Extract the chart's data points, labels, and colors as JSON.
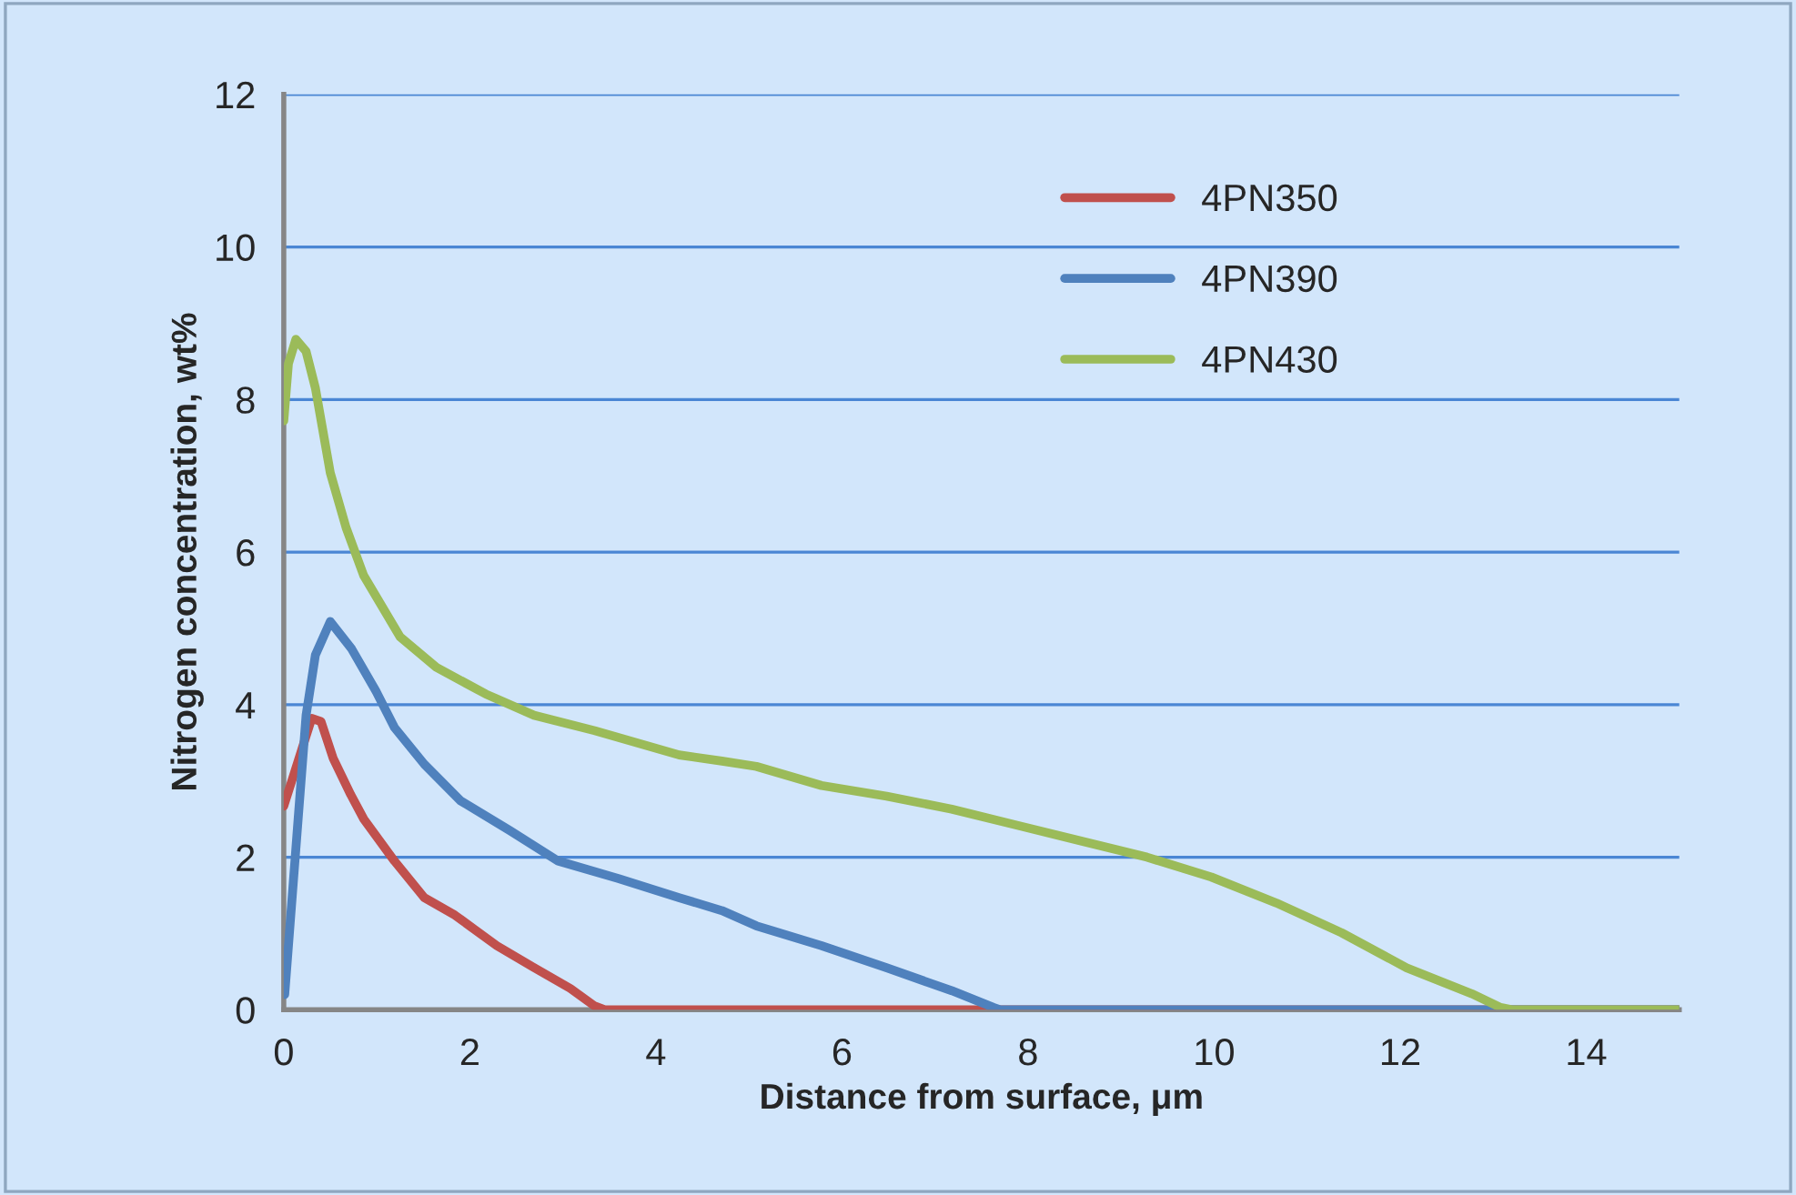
{
  "chart_data": {
    "type": "line",
    "xlabel": "Distance from surface, μm",
    "ylabel": "Nitrogen concentration, wt%",
    "xlim": [
      0,
      15
    ],
    "ylim": [
      0,
      12
    ],
    "xticks": [
      0,
      2,
      4,
      6,
      8,
      10,
      12,
      14
    ],
    "yticks": [
      0,
      2,
      4,
      6,
      8,
      10,
      12
    ],
    "grid": "y",
    "legend": "top right",
    "marker": "none",
    "line_style": "solid",
    "series": [
      {
        "name": "4PN350",
        "color": "#c0504d",
        "x": [
          0,
          0.3,
          0.4,
          0.53,
          0.72,
          0.86,
          1.19,
          1.51,
          1.84,
          2.29,
          2.68,
          3.08,
          3.34,
          3.45,
          15
        ],
        "values": [
          2.67,
          3.82,
          3.78,
          3.3,
          2.82,
          2.5,
          1.95,
          1.47,
          1.24,
          0.84,
          0.56,
          0.28,
          0.05,
          0,
          0
        ]
      },
      {
        "name": "4PN390",
        "color": "#4f81bd",
        "x": [
          0.01,
          0.14,
          0.24,
          0.34,
          0.5,
          0.73,
          0.99,
          1.19,
          1.51,
          1.9,
          2.43,
          2.95,
          3.6,
          4.25,
          4.71,
          5.08,
          5.78,
          6.48,
          7.18,
          7.63,
          7.7,
          15
        ],
        "values": [
          0.2,
          2.27,
          3.86,
          4.65,
          5.09,
          4.73,
          4.18,
          3.7,
          3.22,
          2.74,
          2.35,
          1.95,
          1.72,
          1.47,
          1.3,
          1.1,
          0.84,
          0.55,
          0.25,
          0.03,
          0,
          0
        ]
      },
      {
        "name": "4PN430",
        "color": "#9bbb59",
        "x": [
          0,
          0.05,
          0.13,
          0.24,
          0.34,
          0.5,
          0.67,
          0.86,
          1.25,
          1.64,
          2.17,
          2.69,
          3.34,
          4.25,
          4.71,
          5.08,
          5.78,
          6.48,
          7.18,
          7.88,
          8.58,
          9.28,
          9.97,
          10.67,
          11.37,
          12.07,
          12.77,
          13.08,
          13.2,
          15
        ],
        "values": [
          7.72,
          8.47,
          8.79,
          8.63,
          8.15,
          7.04,
          6.32,
          5.69,
          4.89,
          4.49,
          4.14,
          3.86,
          3.66,
          3.34,
          3.26,
          3.19,
          2.94,
          2.8,
          2.63,
          2.42,
          2.21,
          2.0,
          1.74,
          1.4,
          1.01,
          0.55,
          0.21,
          0.03,
          0,
          0
        ]
      }
    ]
  }
}
